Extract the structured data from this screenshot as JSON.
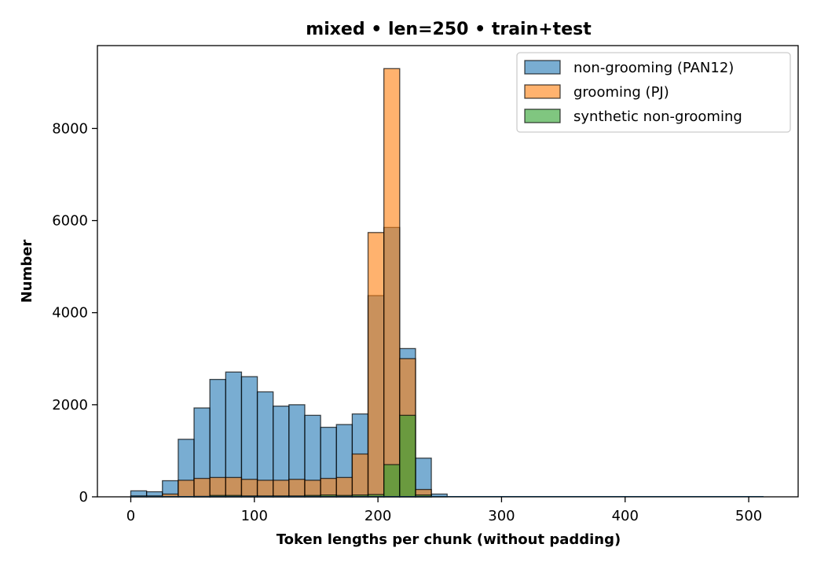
{
  "chart_data": {
    "type": "bar",
    "title": "mixed • len=250 • train+test",
    "xlabel": "Token lengths per chunk (without padding)",
    "ylabel": "Number",
    "xlim": [
      -27,
      540
    ],
    "ylim": [
      0,
      9800
    ],
    "xticks": [
      0,
      100,
      200,
      300,
      400,
      500
    ],
    "yticks": [
      0,
      2000,
      4000,
      6000,
      8000
    ],
    "legend_position": "top-right",
    "bin_width": 12.8,
    "bin_edges": [
      0,
      12.8,
      25.6,
      38.4,
      51.2,
      64,
      76.8,
      89.6,
      102.4,
      115.2,
      128,
      140.8,
      153.6,
      166.4,
      179.2,
      192,
      204.8,
      217.6,
      230.4,
      243.2,
      256
    ],
    "series": [
      {
        "name": "non-grooming (PAN12)",
        "color": "#1f77b4",
        "values": [
          130,
          110,
          350,
          1250,
          1930,
          2550,
          2710,
          2610,
          2280,
          1970,
          2000,
          1770,
          1510,
          1570,
          1800,
          4370,
          5850,
          3220,
          840,
          60
        ]
      },
      {
        "name": "grooming (PJ)",
        "color": "#ff7f0e",
        "values": [
          20,
          20,
          60,
          360,
          400,
          420,
          420,
          380,
          360,
          360,
          380,
          360,
          400,
          420,
          930,
          5740,
          9300,
          3000,
          160,
          0
        ]
      },
      {
        "name": "synthetic non-grooming",
        "color": "#2ca02c",
        "values": [
          0,
          0,
          0,
          0,
          10,
          30,
          30,
          20,
          20,
          20,
          20,
          30,
          40,
          30,
          40,
          50,
          700,
          1770,
          40,
          0
        ]
      }
    ],
    "grid": false
  }
}
